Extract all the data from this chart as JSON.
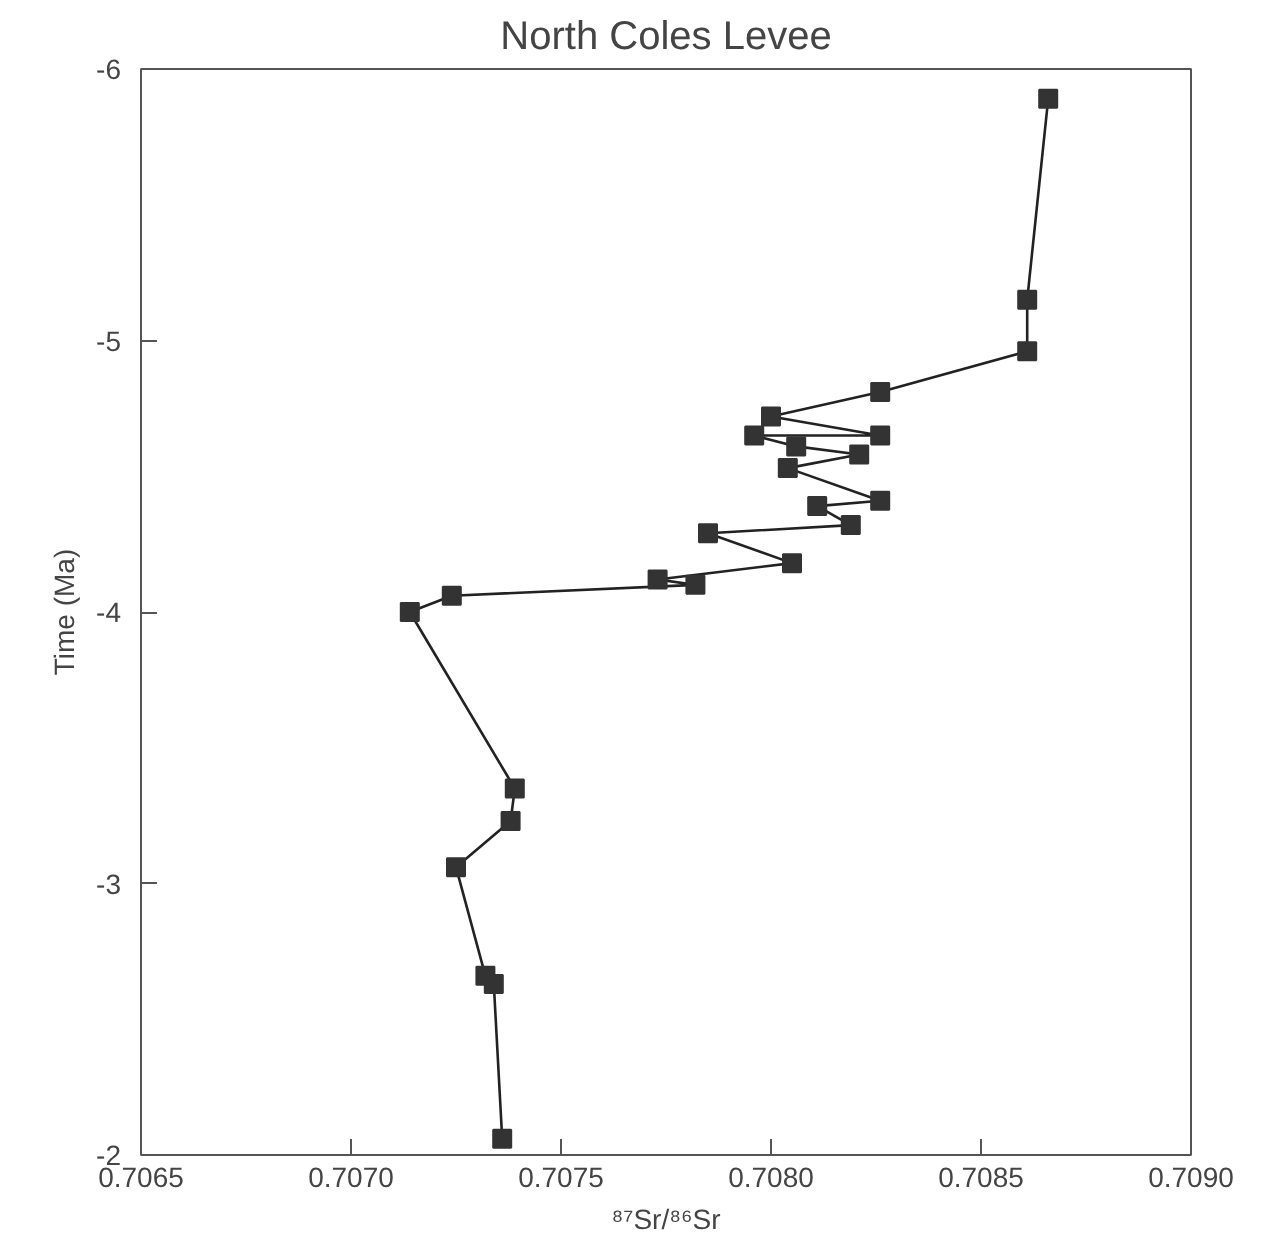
{
  "chart_data": {
    "type": "line",
    "title": "North Coles Levee",
    "xlabel": "⁸⁷Sr/⁸⁶Sr",
    "ylabel": "Time (Ma)",
    "x": [
      0.70736,
      0.70734,
      0.70732,
      0.70725,
      0.70738,
      0.70739,
      0.70714,
      0.70724,
      0.70782,
      0.70773,
      0.70805,
      0.70785,
      0.70819,
      0.70811,
      0.70826,
      0.70804,
      0.70821,
      0.70806,
      0.70796,
      0.70826,
      0.708,
      0.70826,
      0.70861,
      0.70861,
      0.70866
    ],
    "series": [
      {
        "color": "#333333",
        "values": [
          -2.06,
          -2.63,
          -2.66,
          -3.06,
          -3.23,
          -3.35,
          -4.0,
          -4.06,
          -4.1,
          -4.12,
          -4.18,
          -4.29,
          -4.32,
          -4.39,
          -4.41,
          -4.53,
          -4.58,
          -4.61,
          -4.65,
          -4.65,
          -4.72,
          -4.81,
          -4.96,
          -5.15,
          -5.89
        ]
      }
    ],
    "xlim": [
      0.7065,
      0.709
    ],
    "ylim": [
      -2,
      -6
    ],
    "xticks": [
      0.7065,
      {
        "value": 0.707,
        "label": "0.7070"
      },
      0.7075,
      {
        "value": 0.708,
        "label": "0.7080"
      },
      0.7085,
      {
        "value": 0.709,
        "label": "0.7090"
      }
    ],
    "yticks": [
      -6,
      -5,
      -4,
      -3,
      -2
    ],
    "marker": "square",
    "line_style": "solid",
    "grid": false
  }
}
